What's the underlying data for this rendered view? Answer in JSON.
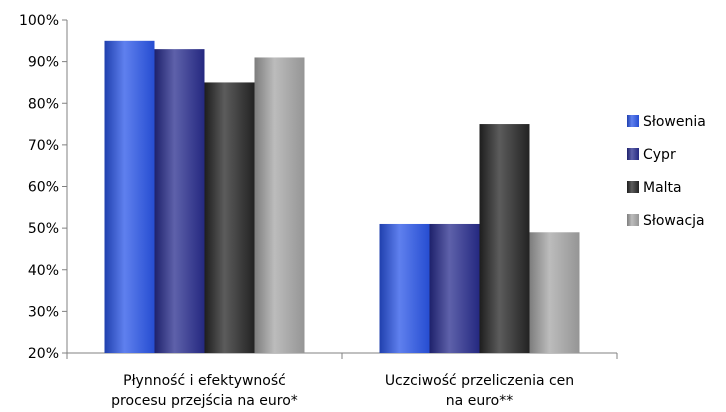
{
  "chart_data": {
    "type": "bar",
    "categories": [
      [
        "Płynność i efektywność",
        "procesu przejścia na euro*"
      ],
      [
        "Uczciwość przeliczenia cen",
        "na euro**"
      ]
    ],
    "series": [
      {
        "name": "Słowenia",
        "values": [
          95,
          51
        ],
        "color": "#2a55e8"
      },
      {
        "name": "Cypr",
        "values": [
          93,
          51
        ],
        "color": "#282c8e"
      },
      {
        "name": "Malta",
        "values": [
          85,
          75
        ],
        "color": "#262626"
      },
      {
        "name": "Słowacja",
        "values": [
          91,
          49
        ],
        "color": "#a6a6a6"
      }
    ],
    "ylim": [
      20,
      100
    ],
    "yticks": [
      "20%",
      "30%",
      "40%",
      "50%",
      "60%",
      "70%",
      "80%",
      "90%",
      "100%"
    ],
    "grid": false,
    "legend_position": "right"
  }
}
